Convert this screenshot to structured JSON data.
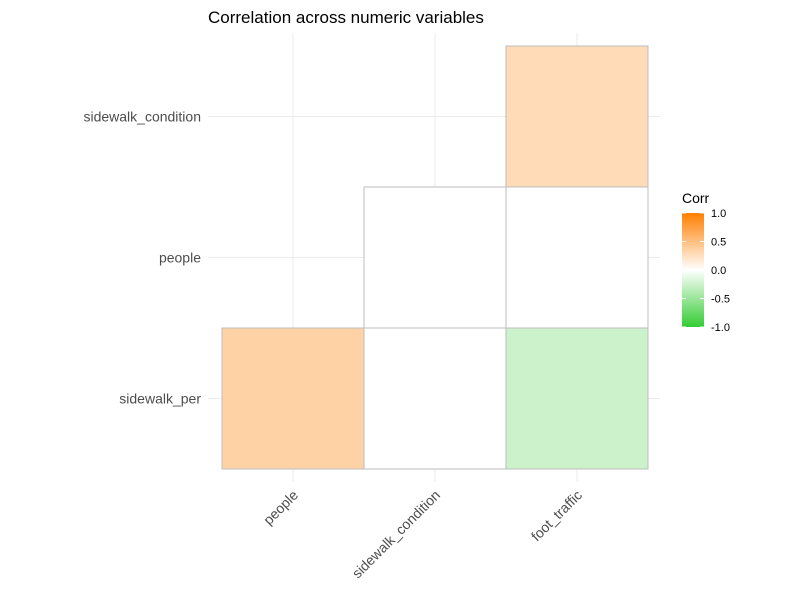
{
  "chart_data": {
    "type": "heatmap",
    "title": "Correlation across numeric variables",
    "x_categories": [
      "people",
      "sidewalk_condition",
      "foot_traffic"
    ],
    "y_categories": [
      "sidewalk_per",
      "people",
      "sidewalk_condition"
    ],
    "cells": [
      {
        "x": "people",
        "y": "sidewalk_per",
        "value": 0.35
      },
      {
        "x": "sidewalk_condition",
        "y": "sidewalk_per",
        "value": 0.0
      },
      {
        "x": "foot_traffic",
        "y": "sidewalk_per",
        "value": -0.25
      },
      {
        "x": "sidewalk_condition",
        "y": "people",
        "value": 0.0
      },
      {
        "x": "foot_traffic",
        "y": "people",
        "value": 0.0
      },
      {
        "x": "foot_traffic",
        "y": "sidewalk_condition",
        "value": 0.28
      }
    ],
    "color_scale": {
      "low": "#33cc33",
      "mid": "#ffffff",
      "high": "#ff7f00",
      "limits": [
        -1,
        1
      ]
    },
    "legend": {
      "title": "Corr",
      "ticks": [
        1.0,
        0.5,
        0.0,
        -0.5,
        -1.0
      ],
      "tick_labels": [
        "1.0",
        "0.5",
        "0.0",
        "-0.5",
        "-1.0"
      ],
      "position": "right"
    },
    "grid": true
  }
}
